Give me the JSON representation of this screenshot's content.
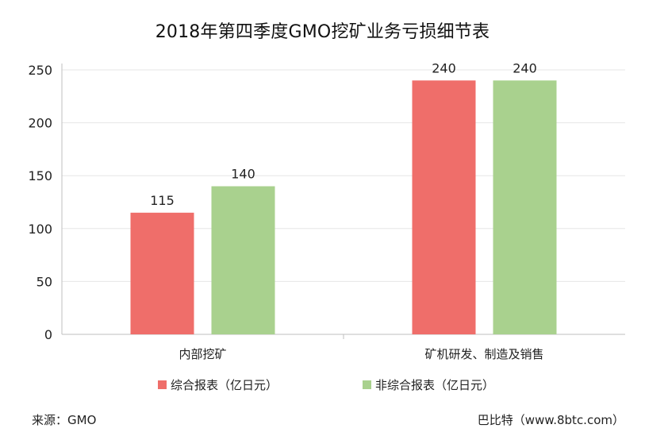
{
  "notes": {
    "source": "来源：GMO",
    "credit": "巴比特（www.8btc.com）"
  },
  "chart_data": {
    "type": "bar",
    "title": "2018年第四季度GMO挖矿业务亏损细节表",
    "categories": [
      "内部挖矿",
      "矿机研发、制造及销售"
    ],
    "series": [
      {
        "name": "综合报表（亿日元）",
        "values": [
          115,
          240
        ],
        "color": "#ef6e6a"
      },
      {
        "name": "非综合报表（亿日元）",
        "values": [
          140,
          240
        ],
        "color": "#a9d18e"
      }
    ],
    "ylim": [
      0,
      250
    ],
    "yticks": [
      0,
      50,
      100,
      150,
      200,
      250
    ],
    "grid": true,
    "legend": "bottom"
  }
}
